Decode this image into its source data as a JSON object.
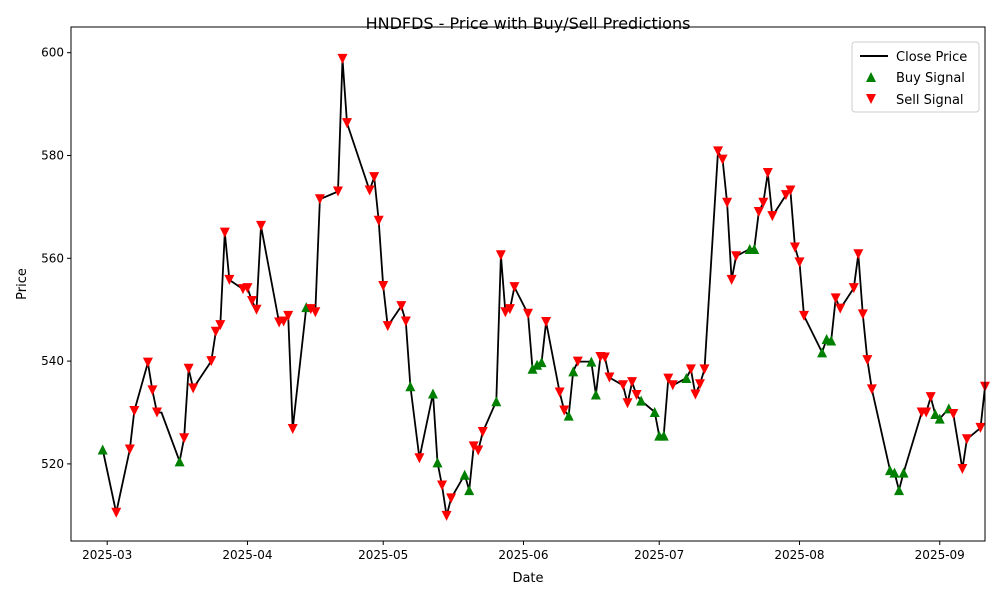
{
  "chart_data": {
    "type": "line",
    "title": "HNDFDS - Price with Buy/Sell Predictions",
    "xlabel": "Date",
    "ylabel": "Price",
    "xlim": [
      "2025-02-21",
      "2025-09-11"
    ],
    "ylim": [
      505,
      605
    ],
    "grid": false,
    "legend_position": "upper right",
    "x_ticks": [
      "2025-03-01",
      "2025-04-01",
      "2025-05-01",
      "2025-06-01",
      "2025-07-01",
      "2025-08-01",
      "2025-09-01"
    ],
    "x_tick_labels": [
      "2025-03",
      "2025-04",
      "2025-05",
      "2025-06",
      "2025-07",
      "2025-08",
      "2025-09"
    ],
    "y_ticks": [
      520,
      540,
      560,
      580,
      600
    ],
    "colors": {
      "close": "#000000",
      "buy": "#008000",
      "sell": "#ff0000"
    },
    "series": [
      {
        "name": "Close Price",
        "kind": "line",
        "points": [
          [
            "2025-02-28",
            522.8
          ],
          [
            "2025-03-03",
            510.5
          ],
          [
            "2025-03-06",
            522.8
          ],
          [
            "2025-03-07",
            530.3
          ],
          [
            "2025-03-10",
            539.7
          ],
          [
            "2025-03-11",
            534.3
          ],
          [
            "2025-03-12",
            530.0
          ],
          [
            "2025-03-13",
            530.0
          ],
          [
            "2025-03-17",
            520.5
          ],
          [
            "2025-03-18",
            525.0
          ],
          [
            "2025-03-19",
            538.5
          ],
          [
            "2025-03-20",
            534.7
          ],
          [
            "2025-03-24",
            540.0
          ],
          [
            "2025-03-25",
            545.7
          ],
          [
            "2025-03-26",
            547.0
          ],
          [
            "2025-03-27",
            565.0
          ],
          [
            "2025-03-28",
            555.8
          ],
          [
            "2025-03-31",
            554.0
          ],
          [
            "2025-04-01",
            554.2
          ],
          [
            "2025-04-02",
            551.7
          ],
          [
            "2025-04-03",
            550.0
          ],
          [
            "2025-04-04",
            566.3
          ],
          [
            "2025-04-08",
            547.5
          ],
          [
            "2025-04-09",
            547.7
          ],
          [
            "2025-04-10",
            548.8
          ],
          [
            "2025-04-11",
            526.8
          ],
          [
            "2025-04-14",
            550.5
          ],
          [
            "2025-04-15",
            550.1
          ],
          [
            "2025-04-16",
            549.5
          ],
          [
            "2025-04-17",
            571.5
          ],
          [
            "2025-04-21",
            573.0
          ],
          [
            "2025-04-22",
            598.8
          ],
          [
            "2025-04-23",
            586.3
          ],
          [
            "2025-04-28",
            573.2
          ],
          [
            "2025-04-29",
            575.8
          ],
          [
            "2025-04-30",
            567.3
          ],
          [
            "2025-05-01",
            554.6
          ],
          [
            "2025-05-02",
            546.8
          ],
          [
            "2025-05-05",
            550.7
          ],
          [
            "2025-05-06",
            547.7
          ],
          [
            "2025-05-07",
            535.1
          ],
          [
            "2025-05-09",
            521.1
          ],
          [
            "2025-05-12",
            533.7
          ],
          [
            "2025-05-13",
            520.3
          ],
          [
            "2025-05-14",
            515.8
          ],
          [
            "2025-05-15",
            509.9
          ],
          [
            "2025-05-16",
            513.3
          ],
          [
            "2025-05-19",
            517.9
          ],
          [
            "2025-05-20",
            514.9
          ],
          [
            "2025-05-21",
            523.4
          ],
          [
            "2025-05-22",
            522.6
          ],
          [
            "2025-05-23",
            526.2
          ],
          [
            "2025-05-26",
            532.2
          ],
          [
            "2025-05-27",
            560.6
          ],
          [
            "2025-05-28",
            549.5
          ],
          [
            "2025-05-29",
            550.1
          ],
          [
            "2025-05-30",
            554.4
          ],
          [
            "2025-06-02",
            549.2
          ],
          [
            "2025-06-03",
            538.5
          ],
          [
            "2025-06-04",
            539.3
          ],
          [
            "2025-06-05",
            539.8
          ],
          [
            "2025-06-06",
            547.6
          ],
          [
            "2025-06-09",
            533.9
          ],
          [
            "2025-06-10",
            530.4
          ],
          [
            "2025-06-11",
            529.4
          ],
          [
            "2025-06-12",
            538.0
          ],
          [
            "2025-06-13",
            539.9
          ],
          [
            "2025-06-16",
            539.9
          ],
          [
            "2025-06-17",
            533.5
          ],
          [
            "2025-06-18",
            540.8
          ],
          [
            "2025-06-19",
            540.7
          ],
          [
            "2025-06-20",
            536.8
          ],
          [
            "2025-06-23",
            535.3
          ],
          [
            "2025-06-24",
            531.8
          ],
          [
            "2025-06-25",
            535.9
          ],
          [
            "2025-06-26",
            533.4
          ],
          [
            "2025-06-27",
            532.3
          ],
          [
            "2025-06-30",
            530.1
          ],
          [
            "2025-07-01",
            525.5
          ],
          [
            "2025-07-02",
            525.5
          ],
          [
            "2025-07-03",
            536.6
          ],
          [
            "2025-07-04",
            535.3
          ],
          [
            "2025-07-07",
            536.7
          ],
          [
            "2025-07-08",
            538.4
          ],
          [
            "2025-07-09",
            533.5
          ],
          [
            "2025-07-10",
            535.5
          ],
          [
            "2025-07-11",
            538.4
          ],
          [
            "2025-07-14",
            580.8
          ],
          [
            "2025-07-15",
            579.2
          ],
          [
            "2025-07-16",
            570.8
          ],
          [
            "2025-07-17",
            555.8
          ],
          [
            "2025-07-18",
            560.4
          ],
          [
            "2025-07-21",
            561.8
          ],
          [
            "2025-07-22",
            561.8
          ],
          [
            "2025-07-23",
            569.0
          ],
          [
            "2025-07-24",
            570.8
          ],
          [
            "2025-07-25",
            576.6
          ],
          [
            "2025-07-26",
            568.2
          ],
          [
            "2025-07-29",
            572.3
          ],
          [
            "2025-07-30",
            573.2
          ],
          [
            "2025-07-31",
            562.1
          ],
          [
            "2025-08-01",
            559.2
          ],
          [
            "2025-08-02",
            548.8
          ],
          [
            "2025-08-06",
            541.7
          ],
          [
            "2025-08-07",
            544.3
          ],
          [
            "2025-08-08",
            544.0
          ],
          [
            "2025-08-09",
            552.2
          ],
          [
            "2025-08-10",
            550.2
          ],
          [
            "2025-08-13",
            554.2
          ],
          [
            "2025-08-14",
            560.8
          ],
          [
            "2025-08-15",
            549.1
          ],
          [
            "2025-08-16",
            540.2
          ],
          [
            "2025-08-17",
            534.5
          ],
          [
            "2025-08-21",
            518.8
          ],
          [
            "2025-08-22",
            518.3
          ],
          [
            "2025-08-23",
            514.9
          ],
          [
            "2025-08-24",
            518.3
          ],
          [
            "2025-08-28",
            530.0
          ],
          [
            "2025-08-29",
            530.0
          ],
          [
            "2025-08-30",
            533.0
          ],
          [
            "2025-08-31",
            529.7
          ],
          [
            "2025-09-01",
            528.8
          ],
          [
            "2025-09-03",
            530.8
          ],
          [
            "2025-09-04",
            529.7
          ],
          [
            "2025-09-06",
            519.0
          ],
          [
            "2025-09-07",
            524.8
          ],
          [
            "2025-09-10",
            527.0
          ],
          [
            "2025-09-11",
            535.0
          ]
        ]
      },
      {
        "name": "Buy Signal",
        "kind": "scatter",
        "marker": "triangle-up",
        "points": [
          [
            "2025-02-28",
            522.8
          ],
          [
            "2025-03-17",
            520.5
          ],
          [
            "2025-04-14",
            550.5
          ],
          [
            "2025-05-07",
            535.1
          ],
          [
            "2025-05-12",
            533.7
          ],
          [
            "2025-05-13",
            520.3
          ],
          [
            "2025-05-19",
            517.9
          ],
          [
            "2025-05-20",
            514.9
          ],
          [
            "2025-05-26",
            532.2
          ],
          [
            "2025-06-03",
            538.5
          ],
          [
            "2025-06-04",
            539.3
          ],
          [
            "2025-06-05",
            539.8
          ],
          [
            "2025-06-11",
            529.4
          ],
          [
            "2025-06-12",
            538.0
          ],
          [
            "2025-06-16",
            539.9
          ],
          [
            "2025-06-17",
            533.5
          ],
          [
            "2025-06-27",
            532.3
          ],
          [
            "2025-06-30",
            530.1
          ],
          [
            "2025-07-01",
            525.5
          ],
          [
            "2025-07-02",
            525.5
          ],
          [
            "2025-07-07",
            536.7
          ],
          [
            "2025-07-21",
            561.8
          ],
          [
            "2025-07-22",
            561.8
          ],
          [
            "2025-08-06",
            541.7
          ],
          [
            "2025-08-07",
            544.3
          ],
          [
            "2025-08-08",
            544.0
          ],
          [
            "2025-08-21",
            518.8
          ],
          [
            "2025-08-22",
            518.3
          ],
          [
            "2025-08-23",
            514.9
          ],
          [
            "2025-08-24",
            518.3
          ],
          [
            "2025-08-31",
            529.7
          ],
          [
            "2025-09-01",
            528.8
          ],
          [
            "2025-09-03",
            530.8
          ]
        ]
      },
      {
        "name": "Sell Signal",
        "kind": "scatter",
        "marker": "triangle-down",
        "points": [
          [
            "2025-03-03",
            510.5
          ],
          [
            "2025-03-06",
            522.8
          ],
          [
            "2025-03-07",
            530.3
          ],
          [
            "2025-03-10",
            539.7
          ],
          [
            "2025-03-11",
            534.3
          ],
          [
            "2025-03-12",
            530.0
          ],
          [
            "2025-03-18",
            525.0
          ],
          [
            "2025-03-19",
            538.5
          ],
          [
            "2025-03-20",
            534.7
          ],
          [
            "2025-03-24",
            540.0
          ],
          [
            "2025-03-25",
            545.7
          ],
          [
            "2025-03-26",
            547.0
          ],
          [
            "2025-03-27",
            565.0
          ],
          [
            "2025-03-28",
            555.8
          ],
          [
            "2025-03-31",
            554.0
          ],
          [
            "2025-04-01",
            554.2
          ],
          [
            "2025-04-02",
            551.7
          ],
          [
            "2025-04-03",
            550.0
          ],
          [
            "2025-04-04",
            566.3
          ],
          [
            "2025-04-08",
            547.5
          ],
          [
            "2025-04-09",
            547.7
          ],
          [
            "2025-04-10",
            548.8
          ],
          [
            "2025-04-11",
            526.8
          ],
          [
            "2025-04-15",
            550.1
          ],
          [
            "2025-04-16",
            549.5
          ],
          [
            "2025-04-17",
            571.5
          ],
          [
            "2025-04-21",
            573.0
          ],
          [
            "2025-04-22",
            598.8
          ],
          [
            "2025-04-23",
            586.3
          ],
          [
            "2025-04-28",
            573.2
          ],
          [
            "2025-04-29",
            575.8
          ],
          [
            "2025-04-30",
            567.3
          ],
          [
            "2025-05-01",
            554.6
          ],
          [
            "2025-05-02",
            546.8
          ],
          [
            "2025-05-05",
            550.7
          ],
          [
            "2025-05-06",
            547.7
          ],
          [
            "2025-05-09",
            521.1
          ],
          [
            "2025-05-14",
            515.8
          ],
          [
            "2025-05-15",
            509.9
          ],
          [
            "2025-05-16",
            513.3
          ],
          [
            "2025-05-21",
            523.4
          ],
          [
            "2025-05-22",
            522.6
          ],
          [
            "2025-05-23",
            526.2
          ],
          [
            "2025-05-27",
            560.6
          ],
          [
            "2025-05-28",
            549.5
          ],
          [
            "2025-05-29",
            550.1
          ],
          [
            "2025-05-30",
            554.4
          ],
          [
            "2025-06-02",
            549.2
          ],
          [
            "2025-06-06",
            547.6
          ],
          [
            "2025-06-09",
            533.9
          ],
          [
            "2025-06-10",
            530.4
          ],
          [
            "2025-06-13",
            539.9
          ],
          [
            "2025-06-18",
            540.8
          ],
          [
            "2025-06-19",
            540.7
          ],
          [
            "2025-06-20",
            536.8
          ],
          [
            "2025-06-23",
            535.3
          ],
          [
            "2025-06-24",
            531.8
          ],
          [
            "2025-06-25",
            535.9
          ],
          [
            "2025-06-26",
            533.4
          ],
          [
            "2025-07-03",
            536.6
          ],
          [
            "2025-07-04",
            535.3
          ],
          [
            "2025-07-08",
            538.4
          ],
          [
            "2025-07-09",
            533.5
          ],
          [
            "2025-07-10",
            535.5
          ],
          [
            "2025-07-11",
            538.4
          ],
          [
            "2025-07-14",
            580.8
          ],
          [
            "2025-07-15",
            579.2
          ],
          [
            "2025-07-16",
            570.8
          ],
          [
            "2025-07-17",
            555.8
          ],
          [
            "2025-07-18",
            560.4
          ],
          [
            "2025-07-23",
            569.0
          ],
          [
            "2025-07-24",
            570.8
          ],
          [
            "2025-07-25",
            576.6
          ],
          [
            "2025-07-26",
            568.2
          ],
          [
            "2025-07-29",
            572.3
          ],
          [
            "2025-07-30",
            573.2
          ],
          [
            "2025-07-31",
            562.1
          ],
          [
            "2025-08-01",
            559.2
          ],
          [
            "2025-08-02",
            548.8
          ],
          [
            "2025-08-09",
            552.2
          ],
          [
            "2025-08-10",
            550.2
          ],
          [
            "2025-08-13",
            554.2
          ],
          [
            "2025-08-14",
            560.8
          ],
          [
            "2025-08-15",
            549.1
          ],
          [
            "2025-08-16",
            540.2
          ],
          [
            "2025-08-17",
            534.5
          ],
          [
            "2025-08-28",
            530.0
          ],
          [
            "2025-08-29",
            530.0
          ],
          [
            "2025-08-30",
            533.0
          ],
          [
            "2025-09-04",
            529.7
          ],
          [
            "2025-09-06",
            519.0
          ],
          [
            "2025-09-07",
            524.8
          ],
          [
            "2025-09-10",
            527.0
          ],
          [
            "2025-09-11",
            535.0
          ]
        ]
      }
    ]
  }
}
